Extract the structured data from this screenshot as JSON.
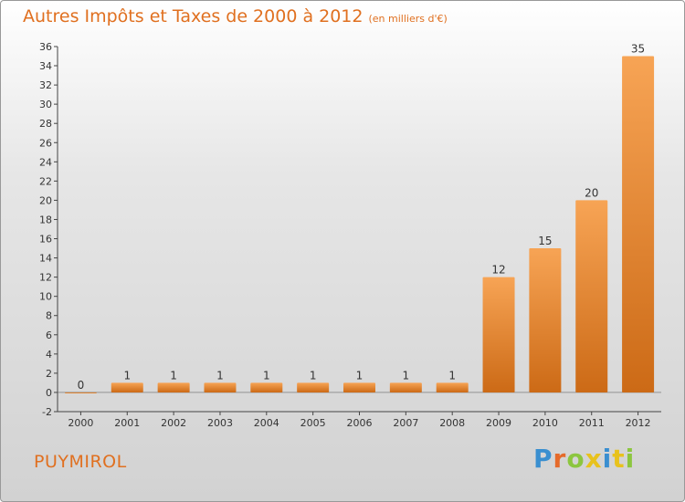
{
  "header": {
    "title": "Autres Impôts et Taxes de 2000 à 2012",
    "subtitle": "(en milliers d'€)"
  },
  "footer": {
    "commune": "PUYMIROL",
    "logo": {
      "letters": [
        "P",
        "r",
        "o",
        "x",
        "i",
        "t",
        "i"
      ],
      "colors": [
        "#3a8fd0",
        "#e56a2a",
        "#8cc63f",
        "#e8c21d",
        "#3a8fd0",
        "#e8c21d",
        "#8cc63f"
      ]
    }
  },
  "chart_data": {
    "type": "bar",
    "categories": [
      "2000",
      "2001",
      "2002",
      "2003",
      "2004",
      "2005",
      "2006",
      "2007",
      "2008",
      "2009",
      "2010",
      "2011",
      "2012"
    ],
    "values": [
      0,
      1,
      1,
      1,
      1,
      1,
      1,
      1,
      1,
      12,
      15,
      20,
      35
    ],
    "data_labels": [
      "0",
      "1",
      "1",
      "1",
      "1",
      "1",
      "1",
      "1",
      "1",
      "12",
      "15",
      "20",
      "35"
    ],
    "title": "Autres Impôts et Taxes de 2000 à 2012",
    "ylim": [
      -2,
      36
    ],
    "yticks": [
      -2,
      0,
      2,
      4,
      6,
      8,
      10,
      12,
      14,
      16,
      18,
      20,
      22,
      24,
      26,
      28,
      30,
      32,
      34,
      36
    ],
    "grid": false,
    "bar_color": "#f0902e"
  }
}
